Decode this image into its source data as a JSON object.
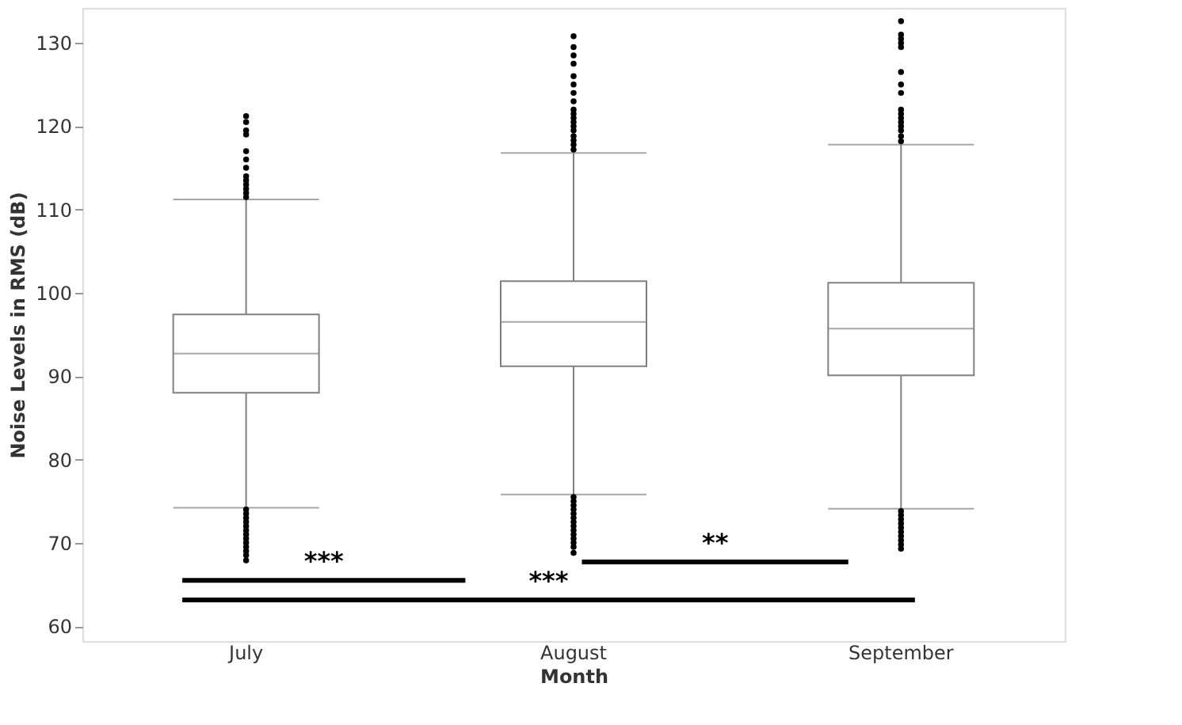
{
  "chart_data": {
    "type": "box",
    "xlabel": "Month",
    "ylabel": "Noise Levels in RMS (dB)",
    "categories": [
      "July",
      "August",
      "September"
    ],
    "boxes": [
      {
        "low": 74.2,
        "q1": 88.0,
        "median": 92.7,
        "q3": 97.4,
        "high": 111.2,
        "outliers": [
          111.5,
          112,
          112.5,
          113,
          113.5,
          114,
          115,
          116,
          117,
          119,
          119.5,
          120.5,
          121.2,
          74,
          73.5,
          73,
          72.5,
          72,
          71.5,
          71,
          70.5,
          70,
          69.5,
          69,
          68.5,
          67.9
        ]
      },
      {
        "low": 75.8,
        "q1": 91.2,
        "median": 96.5,
        "q3": 101.4,
        "high": 116.8,
        "outliers": [
          117.2,
          117.8,
          118.3,
          118.8,
          119.5,
          120,
          120.5,
          121,
          121.5,
          122,
          123,
          124,
          125,
          126,
          127.5,
          128.5,
          129.5,
          130.8,
          75.5,
          75,
          74.5,
          74,
          73.5,
          73,
          72.5,
          72,
          71.5,
          71,
          70.5,
          70,
          69.5,
          68.8
        ]
      },
      {
        "low": 74.1,
        "q1": 90.1,
        "median": 95.7,
        "q3": 101.2,
        "high": 117.8,
        "outliers": [
          118.2,
          118.8,
          119.5,
          120,
          120.5,
          121,
          121.5,
          122,
          124,
          125,
          126.5,
          129.5,
          130,
          130.5,
          131,
          132.6,
          73.8,
          73.3,
          72.8,
          72.3,
          71.8,
          71.3,
          70.8,
          70.3,
          69.8,
          69.3
        ]
      }
    ],
    "ylim": [
      58.2,
      134.2
    ],
    "yticks": [
      60,
      70,
      80,
      90,
      100,
      110,
      120,
      130
    ],
    "grid": false,
    "annotations": [
      "***",
      "***",
      "**"
    ]
  }
}
